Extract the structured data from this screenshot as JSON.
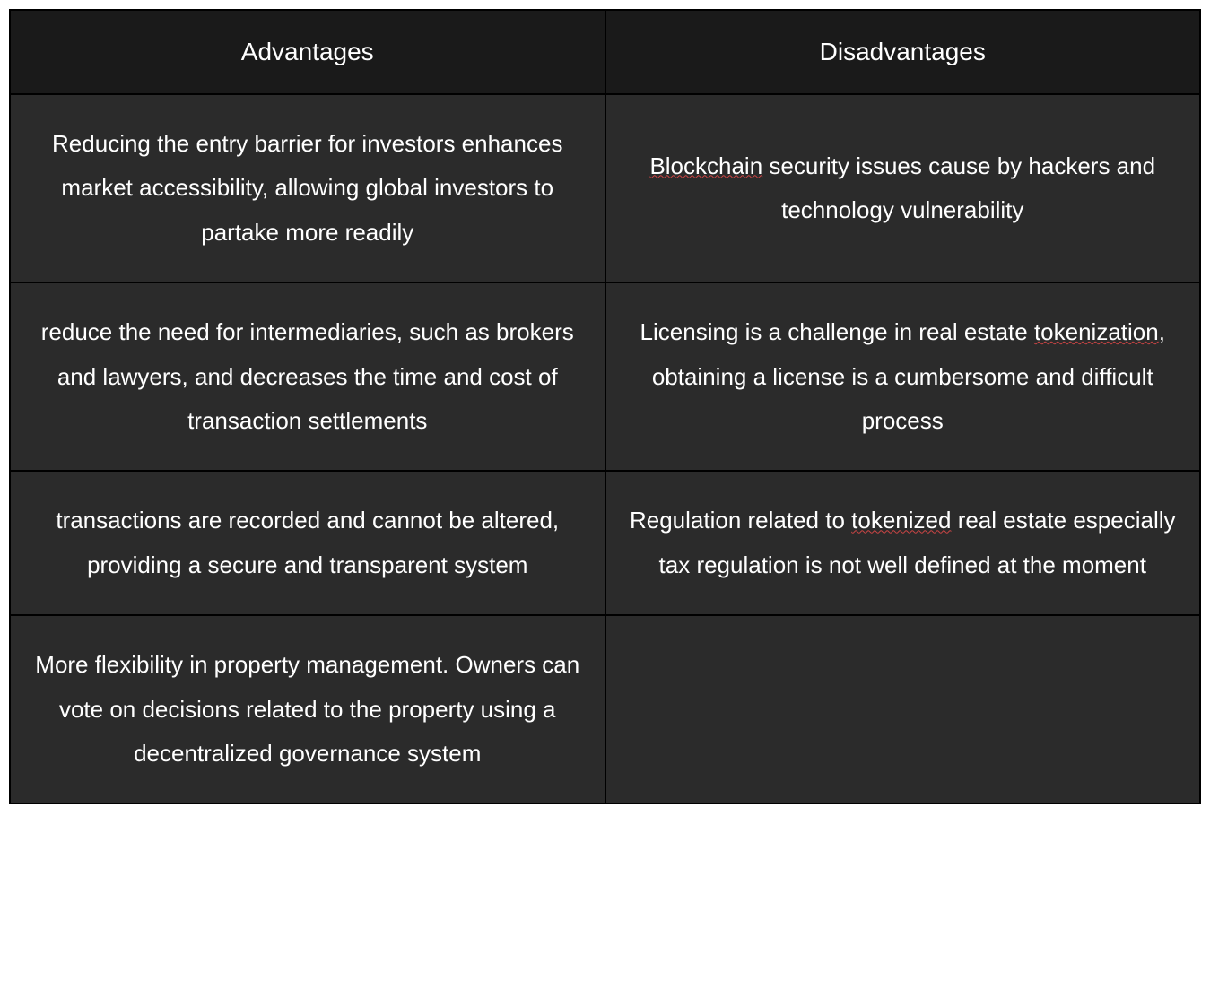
{
  "table": {
    "columns": [
      "Advantages",
      "Disadvantages"
    ],
    "rows": [
      {
        "advantage": "Reducing the entry barrier for investors enhances market accessibility, allowing global investors to partake more readily",
        "disadvantage_pre": "",
        "disadvantage_underlined": "Blockchain",
        "disadvantage_post": " security issues cause by hackers and technology vulnerability"
      },
      {
        "advantage": "reduce the need for intermediaries, such as brokers and lawyers, and decreases the time and cost of transaction settlements",
        "disadvantage_pre": "Licensing is a challenge in real estate ",
        "disadvantage_underlined": "tokenization",
        "disadvantage_post": ", obtaining a license is a cumbersome and difficult process"
      },
      {
        "advantage": "transactions are recorded and cannot be altered, providing a secure and transparent system",
        "disadvantage_pre": "Regulation related to ",
        "disadvantage_underlined": "tokenized",
        "disadvantage_post": " real estate especially tax regulation is not well defined at the moment"
      },
      {
        "advantage": "More flexibility in property management. Owners can vote on decisions related to the property using a decentralized governance system",
        "disadvantage_pre": "",
        "disadvantage_underlined": "",
        "disadvantage_post": ""
      }
    ],
    "header_bg": "#1a1a1a",
    "cell_bg": "#2b2b2b",
    "border_color": "#000000",
    "text_color": "#ffffff",
    "underline_color": "#cc4444",
    "header_fontsize": 28,
    "cell_fontsize": 26
  }
}
